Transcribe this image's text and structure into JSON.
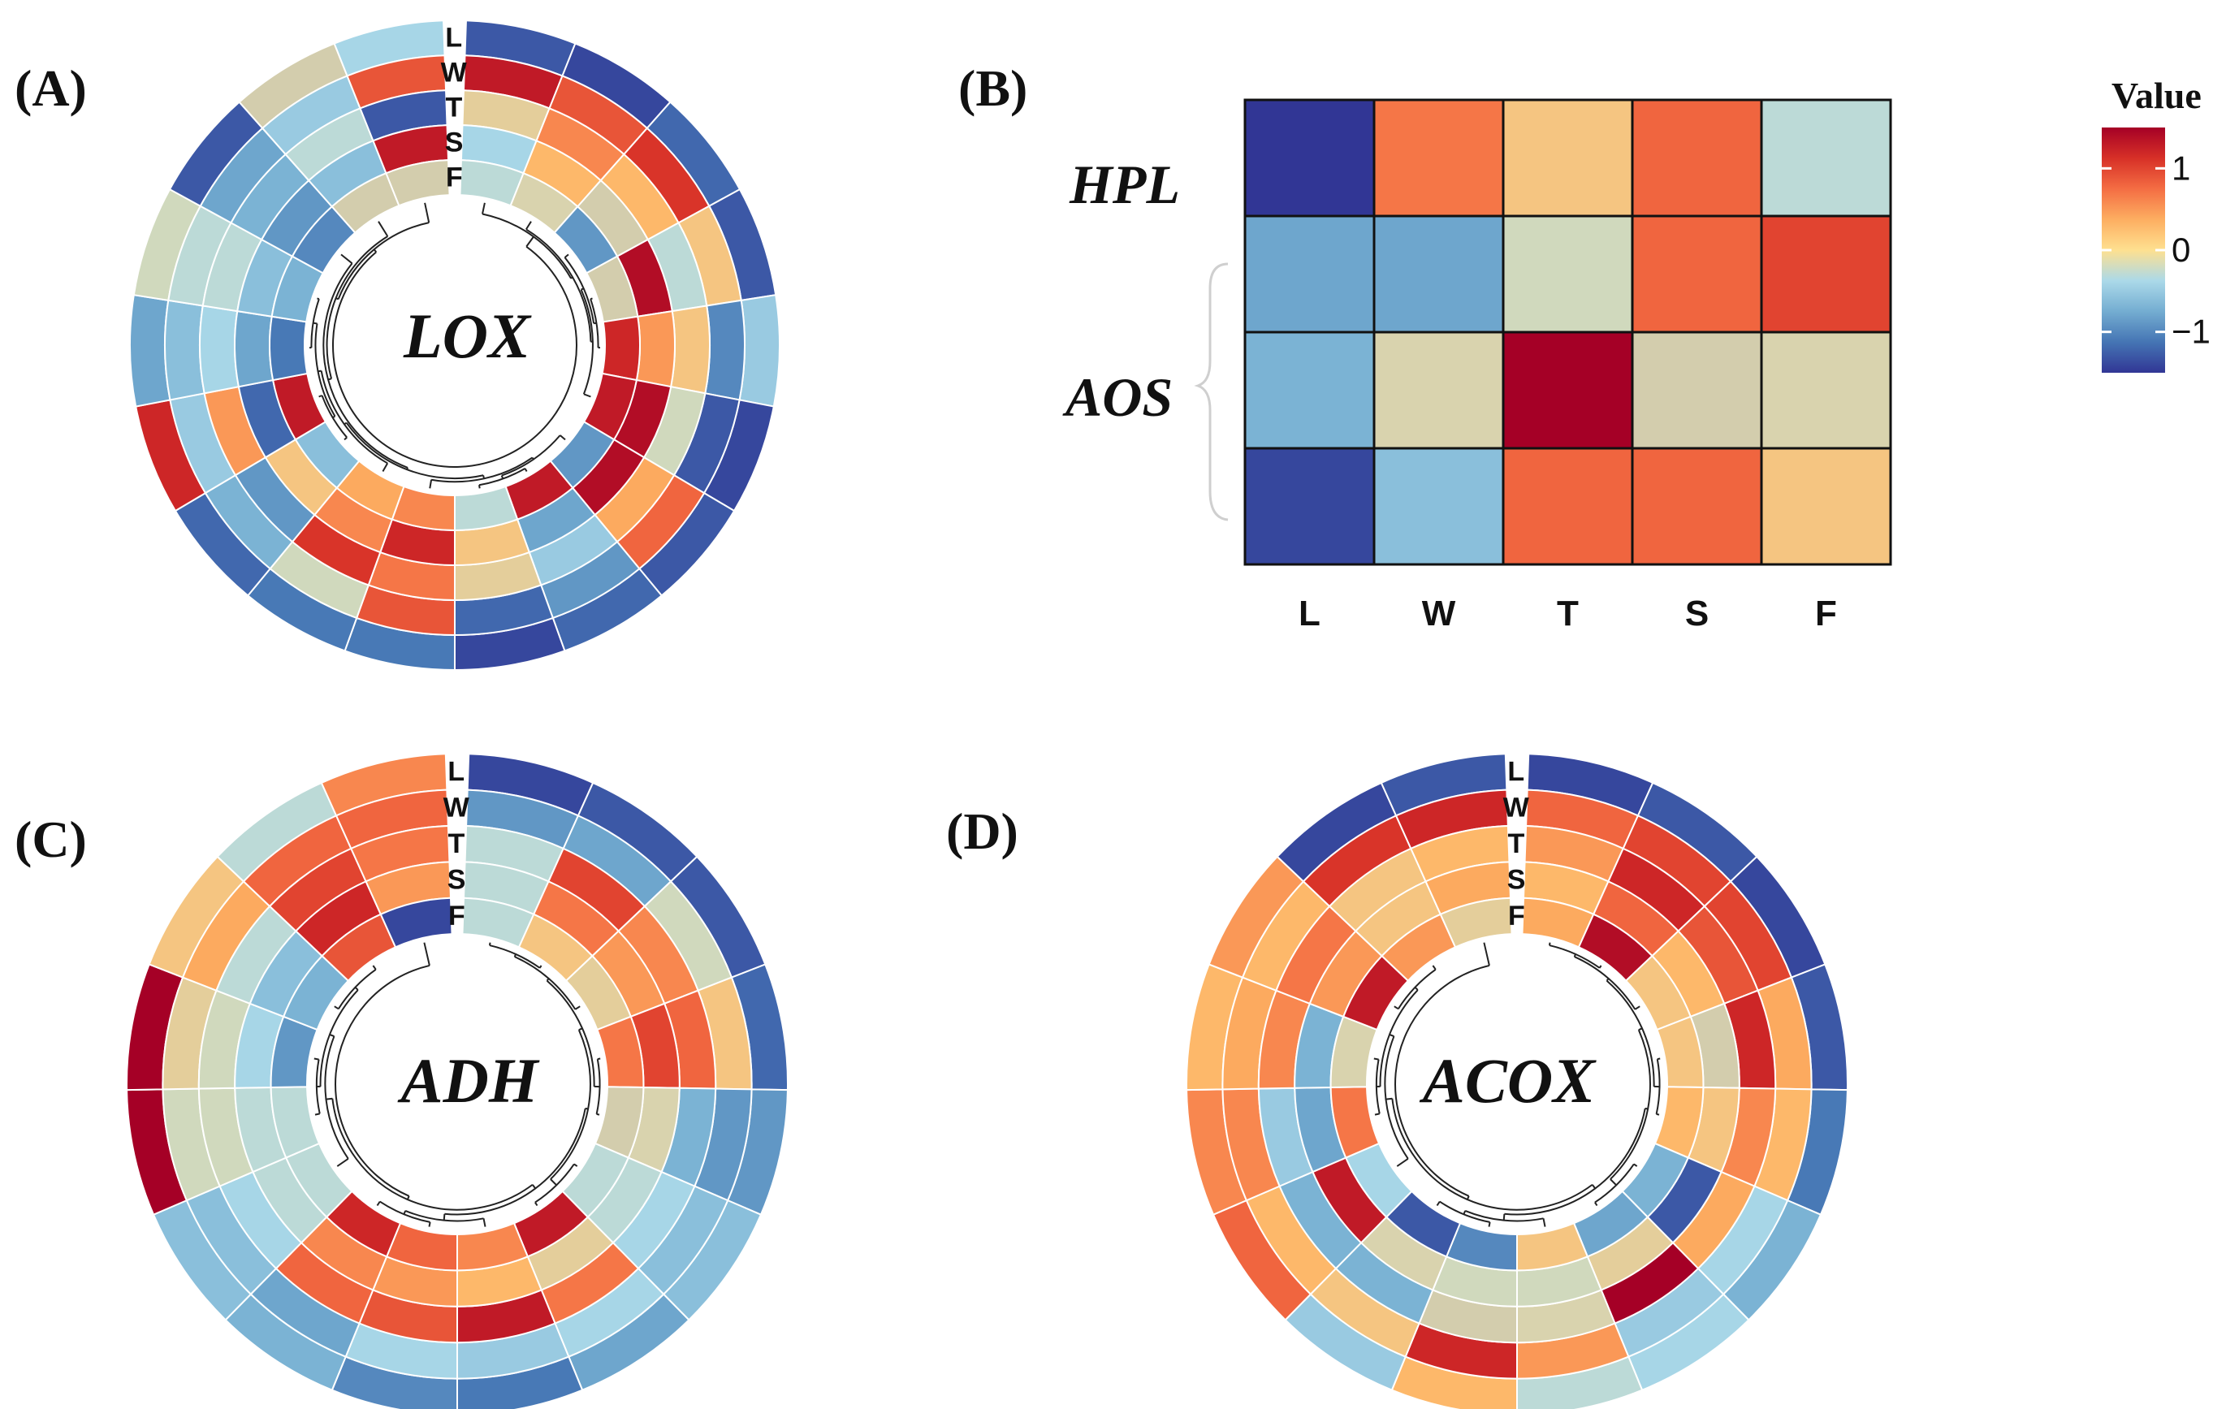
{
  "colors": {
    "scale": [
      "#313695",
      "#4575b4",
      "#74add1",
      "#abd9e9",
      "#fee090",
      "#fdae61",
      "#f46d43",
      "#d73027",
      "#a50026"
    ],
    "domain": [
      -1.5,
      1.5
    ],
    "mid_gray": "#c8c8b4",
    "edge": "#ffffff",
    "dendrogram": "#222222"
  },
  "legend": {
    "title": "Value",
    "ticks": [
      {
        "value": 1,
        "label": "1"
      },
      {
        "value": 0,
        "label": "0"
      },
      {
        "value": -1,
        "label": "−1"
      }
    ]
  },
  "chart_data": [
    {
      "id": "A",
      "label": "(A)",
      "type": "heatmap",
      "subtype": "circular",
      "title": "LOX",
      "tracks": [
        "L",
        "W",
        "T",
        "S",
        "F"
      ],
      "values": [
        [
          -1.3,
          1.3,
          0.1,
          -0.4,
          -0.3
        ],
        [
          -1.4,
          0.9,
          0.6,
          0.3,
          -0.1
        ],
        [
          -1.2,
          1.1,
          0.3,
          0.0,
          -0.9
        ],
        [
          -1.3,
          0.2,
          -0.3,
          1.4,
          0.0
        ],
        [
          -0.5,
          -1.0,
          0.2,
          0.5,
          1.2
        ],
        [
          -1.4,
          -1.3,
          -0.2,
          1.4,
          1.3
        ],
        [
          -1.3,
          0.8,
          0.4,
          1.4,
          -0.9
        ],
        [
          -1.2,
          -0.9,
          -0.5,
          -0.8,
          1.3
        ],
        [
          -1.4,
          -1.2,
          0.1,
          0.2,
          -0.3
        ],
        [
          -1.1,
          0.9,
          0.7,
          1.2,
          0.6
        ],
        [
          -1.1,
          -0.2,
          1.1,
          0.6,
          0.4
        ],
        [
          -1.2,
          -0.7,
          -0.9,
          0.2,
          -0.6
        ],
        [
          1.2,
          -0.5,
          0.5,
          -1.2,
          1.3
        ],
        [
          -0.8,
          -0.6,
          -0.4,
          -0.8,
          -1.1
        ],
        [
          -0.2,
          -0.3,
          -0.3,
          -0.6,
          -0.7
        ],
        [
          -1.3,
          -0.8,
          -0.7,
          -0.9,
          -1.0
        ],
        [
          0.0,
          -0.5,
          -0.3,
          -0.6,
          0.0
        ],
        [
          -0.4,
          0.9,
          -1.3,
          1.3,
          0.0
        ]
      ]
    },
    {
      "id": "B",
      "label": "(B)",
      "type": "heatmap",
      "rows": [
        "HPL",
        "",
        "",
        ""
      ],
      "row_group_label": "AOS",
      "columns": [
        "L",
        "W",
        "T",
        "S",
        "F"
      ],
      "values": [
        [
          -1.5,
          0.7,
          0.2,
          0.8,
          -0.3
        ],
        [
          -0.8,
          -0.8,
          -0.2,
          0.8,
          1.0
        ],
        [
          -0.7,
          -0.1,
          1.5,
          0.0,
          -0.1
        ],
        [
          -1.4,
          -0.6,
          0.8,
          0.8,
          0.2
        ]
      ]
    },
    {
      "id": "C",
      "label": "(C)",
      "type": "heatmap",
      "subtype": "circular",
      "title": "ADH",
      "tracks": [
        "L",
        "W",
        "T",
        "S",
        "F"
      ],
      "values": [
        [
          -1.4,
          -0.9,
          -0.3,
          -0.3,
          -0.3
        ],
        [
          -1.3,
          -0.8,
          1.0,
          0.7,
          0.2
        ],
        [
          -1.3,
          -0.2,
          0.6,
          0.5,
          0.1
        ],
        [
          -1.2,
          0.2,
          0.8,
          1.0,
          0.7
        ],
        [
          -0.9,
          -0.9,
          -0.7,
          -0.1,
          0.0
        ],
        [
          -0.6,
          -0.6,
          -0.4,
          -0.3,
          -0.3
        ],
        [
          -0.8,
          -0.4,
          0.7,
          0.1,
          1.3
        ],
        [
          -1.1,
          -0.5,
          1.3,
          0.3,
          0.6
        ],
        [
          -1.0,
          -0.4,
          0.9,
          0.5,
          0.8
        ],
        [
          -0.7,
          -0.8,
          0.8,
          0.6,
          1.2
        ],
        [
          -0.6,
          -0.6,
          -0.4,
          -0.3,
          -0.3
        ],
        [
          1.5,
          -0.2,
          -0.2,
          -0.3,
          -0.3
        ],
        [
          1.5,
          0.1,
          -0.2,
          -0.4,
          -0.9
        ],
        [
          0.2,
          0.4,
          -0.3,
          -0.6,
          -0.7
        ],
        [
          -0.3,
          0.8,
          1.0,
          1.2,
          0.9
        ],
        [
          0.6,
          0.8,
          0.7,
          0.5,
          -1.4
        ]
      ]
    },
    {
      "id": "D",
      "label": "(D)",
      "type": "heatmap",
      "subtype": "circular",
      "title": "ACOX",
      "tracks": [
        "L",
        "W",
        "T",
        "S",
        "F"
      ],
      "values": [
        [
          -1.4,
          0.8,
          0.5,
          0.3,
          0.4
        ],
        [
          -1.3,
          1.0,
          1.2,
          0.8,
          1.4
        ],
        [
          -1.4,
          1.0,
          0.9,
          0.3,
          0.2
        ],
        [
          -1.3,
          0.4,
          1.2,
          0.0,
          0.2
        ],
        [
          -1.1,
          0.3,
          0.6,
          0.2,
          0.3
        ],
        [
          -0.7,
          -0.4,
          0.4,
          -1.3,
          -0.7
        ],
        [
          -0.4,
          -0.5,
          1.6,
          0.1,
          -0.8
        ],
        [
          -0.3,
          0.5,
          -0.1,
          -0.2,
          0.2
        ],
        [
          0.3,
          1.2,
          0.0,
          -0.2,
          -1.0
        ],
        [
          -0.5,
          0.2,
          -0.7,
          -0.1,
          -1.3
        ],
        [
          0.8,
          0.3,
          -0.7,
          1.3,
          -0.4
        ],
        [
          0.6,
          0.6,
          -0.5,
          -0.8,
          0.7
        ],
        [
          0.3,
          0.4,
          0.6,
          -0.7,
          -0.1
        ],
        [
          0.5,
          0.3,
          0.7,
          0.5,
          1.3
        ],
        [
          -1.4,
          1.1,
          0.2,
          0.2,
          0.5
        ],
        [
          -1.3,
          1.2,
          0.3,
          0.4,
          0.1
        ]
      ]
    }
  ]
}
